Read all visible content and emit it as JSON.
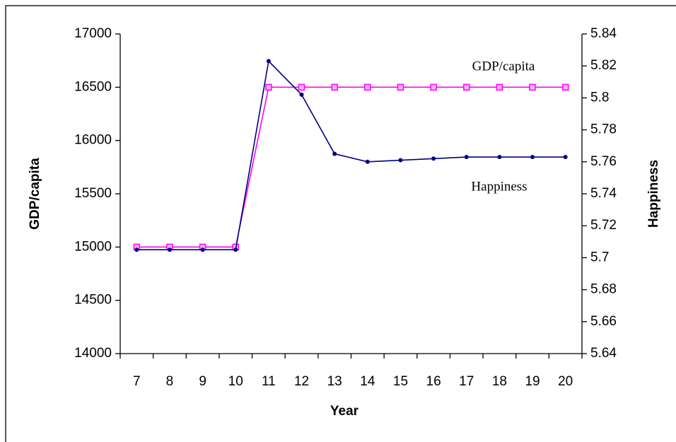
{
  "chart_data": {
    "type": "line",
    "x_label": "Year",
    "y_label": "GDP/capita",
    "y2_label": "Happiness",
    "annotations": [
      "GDP/capita",
      "Happiness"
    ],
    "categories": [
      7,
      8,
      9,
      10,
      11,
      12,
      13,
      14,
      15,
      16,
      17,
      18,
      19,
      20
    ],
    "series": [
      {
        "name": "GDP/capita",
        "color": "#ff00ff",
        "marker": "square",
        "values": [
          15000,
          15000,
          15000,
          15000,
          16500,
          16500,
          16500,
          16500,
          16500,
          16500,
          16500,
          16500,
          16500,
          16500
        ]
      },
      {
        "name": "Happiness",
        "color": "#000080",
        "marker": "circle",
        "axis": "y2",
        "values": [
          5.705,
          5.705,
          5.705,
          5.705,
          5.823,
          5.802,
          5.765,
          5.76,
          5.761,
          5.762,
          5.763,
          5.763,
          5.763,
          5.763
        ]
      }
    ],
    "ylim": [
      14000,
      17000
    ],
    "yticks": [
      14000,
      14500,
      15000,
      15500,
      16000,
      16500,
      17000
    ],
    "y2lim": [
      5.64,
      5.84
    ],
    "y2ticks": [
      5.64,
      5.66,
      5.68,
      5.7,
      5.72,
      5.74,
      5.76,
      5.78,
      5.8,
      5.82,
      5.84
    ]
  }
}
